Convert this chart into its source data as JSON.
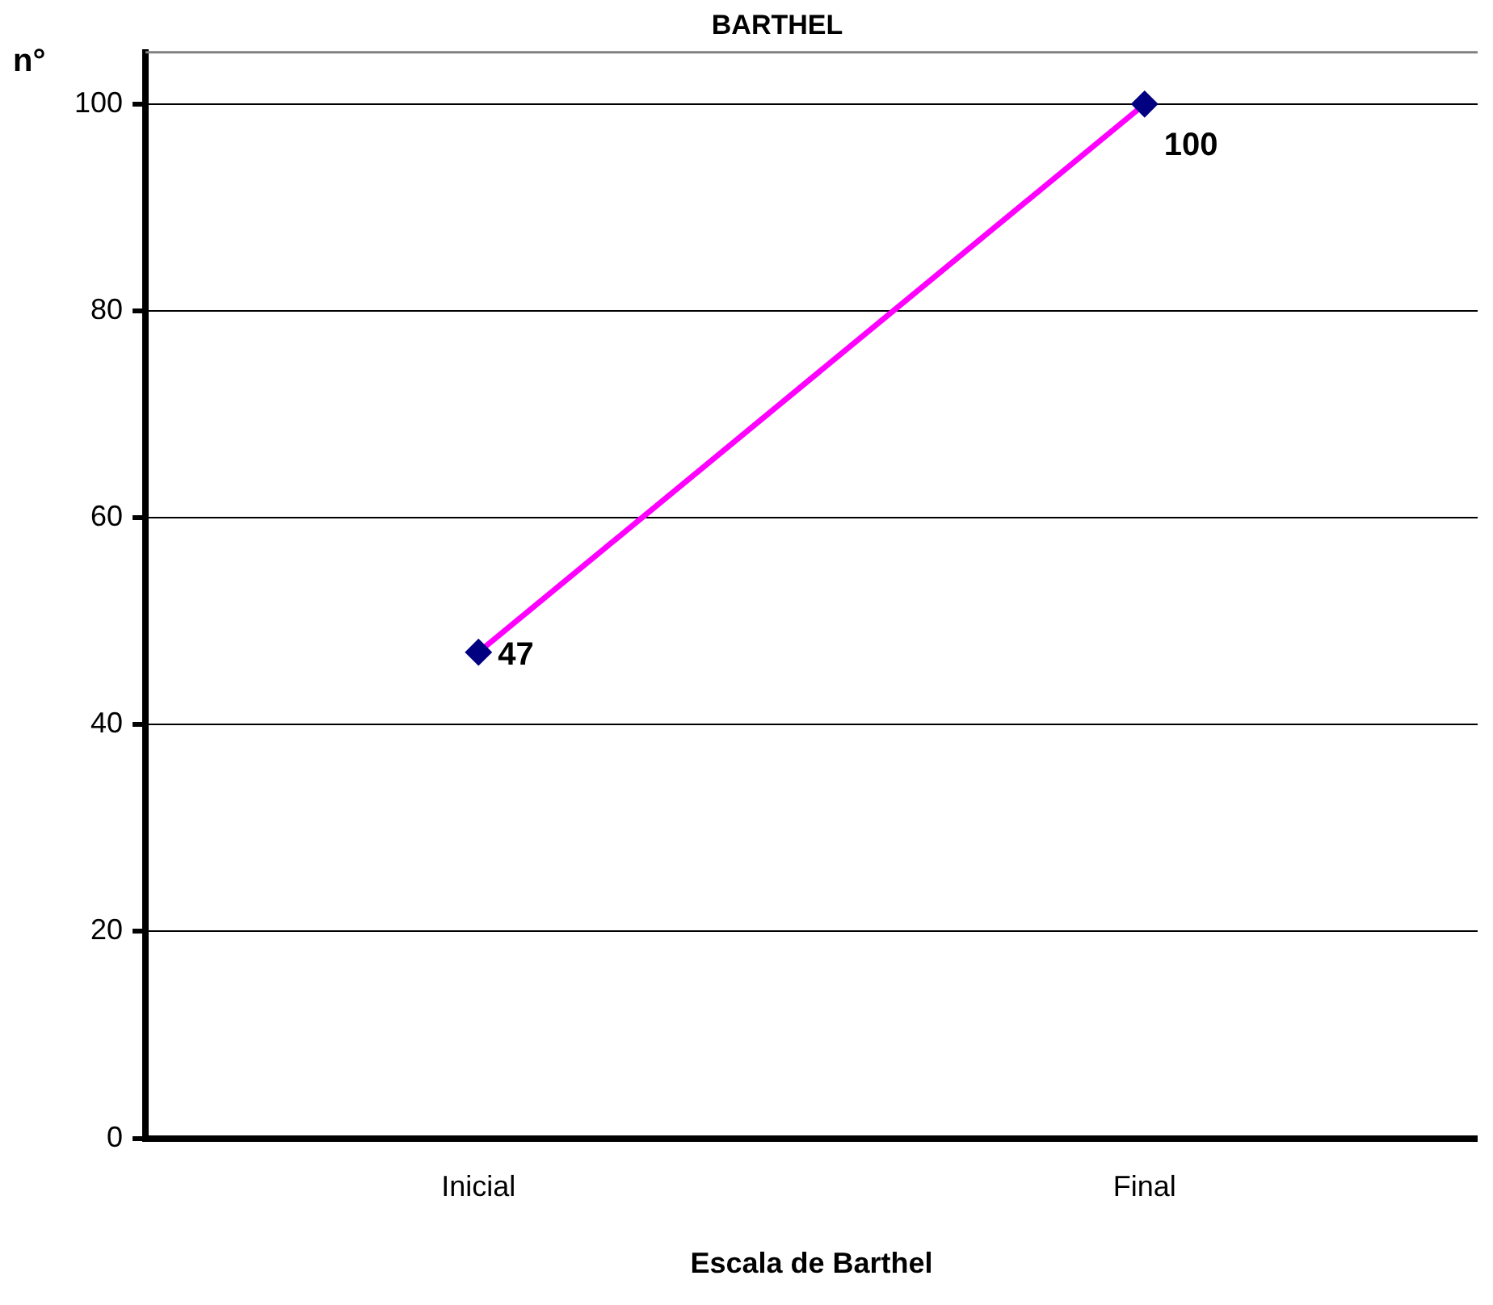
{
  "chart_data": {
    "type": "line",
    "title": "BARTHEL",
    "xlabel": "Escala de Barthel",
    "ylabel": "n°",
    "categories": [
      "Inicial",
      "Final"
    ],
    "series": [
      {
        "color": "#ff00ff",
        "values": [
          47,
          100
        ]
      }
    ],
    "ylim": [
      0,
      105
    ],
    "yticks": [
      0,
      20,
      40,
      60,
      80,
      100
    ],
    "grid": "y",
    "legend": false,
    "marker": "diamond",
    "line_style": "solid",
    "data_labels": true
  }
}
